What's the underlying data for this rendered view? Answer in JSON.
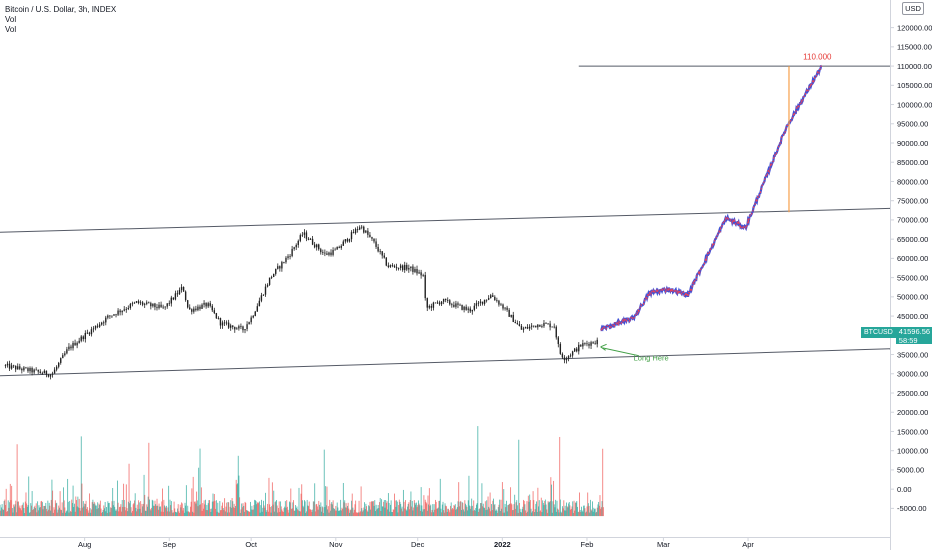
{
  "legend": {
    "title": "Bitcoin / U.S. Dollar, 3h, INDEX",
    "line2": "Vol",
    "line3": "Vol"
  },
  "currency_label": "USD",
  "price_tag": {
    "symbol": "BTCUSD",
    "price": "41596.56",
    "countdown": "58:59"
  },
  "colors": {
    "axis_text": "#131722",
    "grid_axis": "#d1d4dc",
    "trend_line": "#555a66",
    "candle": "#222222",
    "volume_up": "#26a69a",
    "volume_down": "#ef5350",
    "projection_red": "#e8425a",
    "projection_blue": "#3f51d6",
    "target_line": "#f7a04b",
    "target_label": "#e53935",
    "annotation_green": "#43a047"
  },
  "annotations": {
    "target_label": "110.000",
    "long_label": "Long Here"
  },
  "chart_data": {
    "type": "candlestick",
    "title": "Bitcoin / U.S. Dollar, 3h, INDEX",
    "y_axis": {
      "ticks": [
        120000,
        115000,
        110000,
        105000,
        100000,
        95000,
        90000,
        85000,
        80000,
        75000,
        70000,
        65000,
        60000,
        55000,
        50000,
        45000,
        40000,
        35000,
        30000,
        25000,
        20000,
        15000,
        10000,
        5000,
        0,
        -5000
      ],
      "tick_labels": [
        "120000.00",
        "115000.00",
        "110000.00",
        "105000.00",
        "100000.00",
        "95000.00",
        "90000.00",
        "85000.00",
        "80000.00",
        "75000.00",
        "70000.00",
        "65000.00",
        "60000.00",
        "55000.00",
        "50000.00",
        "45000.00",
        "40000.00",
        "35000.00",
        "30000.00",
        "25000.00",
        "20000.00",
        "15000.00",
        "10000.00",
        "5000.00",
        "0.00",
        "-5000.00"
      ],
      "range": [
        -7500,
        122500
      ]
    },
    "x_axis": {
      "ticks": [
        "2021-08-01",
        "2021-09-01",
        "2021-10-01",
        "2021-11-01",
        "2021-12-01",
        "2022-01-01",
        "2022-02-01",
        "2022-03-01",
        "2022-04-01"
      ],
      "tick_labels": [
        "Aug",
        "Sep",
        "Oct",
        "Nov",
        "Dec",
        "2022",
        "Feb",
        "Mar",
        "Apr"
      ],
      "range": [
        "2021-07-01",
        "2022-05-23"
      ]
    },
    "price_path": [
      [
        "2021-07-03",
        32000
      ],
      [
        "2021-07-20",
        29800
      ],
      [
        "2021-07-26",
        36500
      ],
      [
        "2021-08-01",
        40000
      ],
      [
        "2021-08-10",
        45000
      ],
      [
        "2021-08-20",
        48500
      ],
      [
        "2021-08-30",
        47000
      ],
      [
        "2021-09-06",
        52500
      ],
      [
        "2021-09-08",
        46500
      ],
      [
        "2021-09-15",
        48000
      ],
      [
        "2021-09-20",
        43000
      ],
      [
        "2021-09-28",
        41500
      ],
      [
        "2021-10-01",
        44500
      ],
      [
        "2021-10-08",
        55000
      ],
      [
        "2021-10-15",
        61000
      ],
      [
        "2021-10-20",
        66500
      ],
      [
        "2021-10-28",
        61000
      ],
      [
        "2021-11-01",
        62000
      ],
      [
        "2021-11-10",
        68500
      ],
      [
        "2021-11-15",
        64000
      ],
      [
        "2021-11-20",
        58000
      ],
      [
        "2021-11-28",
        57500
      ],
      [
        "2021-12-03",
        55500
      ],
      [
        "2021-12-04",
        47000
      ],
      [
        "2021-12-10",
        49000
      ],
      [
        "2021-12-20",
        46500
      ],
      [
        "2021-12-28",
        50500
      ],
      [
        "2022-01-01",
        47500
      ],
      [
        "2022-01-08",
        41500
      ],
      [
        "2022-01-15",
        43000
      ],
      [
        "2022-01-20",
        42500
      ],
      [
        "2022-01-22",
        35500
      ],
      [
        "2022-01-24",
        34000
      ],
      [
        "2022-01-30",
        37500
      ],
      [
        "2022-02-05",
        38500
      ]
    ],
    "projection": [
      [
        "2022-02-06",
        41600
      ],
      [
        "2022-02-12",
        43000
      ],
      [
        "2022-02-18",
        44500
      ],
      [
        "2022-02-24",
        51000
      ],
      [
        "2022-03-03",
        52000
      ],
      [
        "2022-03-10",
        50500
      ],
      [
        "2022-03-24",
        70500
      ],
      [
        "2022-03-31",
        68000
      ],
      [
        "2022-04-01",
        69500
      ],
      [
        "2022-04-15",
        94000
      ],
      [
        "2022-04-28",
        110000
      ]
    ],
    "trendlines": [
      {
        "from": [
          "2021-07-01",
          66800
        ],
        "to": [
          "2022-05-23",
          73000
        ]
      },
      {
        "from": [
          "2021-07-01",
          29500
        ],
        "to": [
          "2022-05-23",
          36500
        ]
      },
      {
        "from": [
          "2022-01-29",
          110000
        ],
        "to": [
          "2022-05-23",
          110000
        ]
      }
    ],
    "target": {
      "date": "2022-04-16",
      "from": 72000,
      "to": 110000,
      "label": "110.000"
    },
    "volume": {
      "series": [
        "Vol",
        "Vol"
      ],
      "spike_values": [
        20000,
        24500,
        16000,
        19000,
        14000,
        21000
      ]
    }
  }
}
